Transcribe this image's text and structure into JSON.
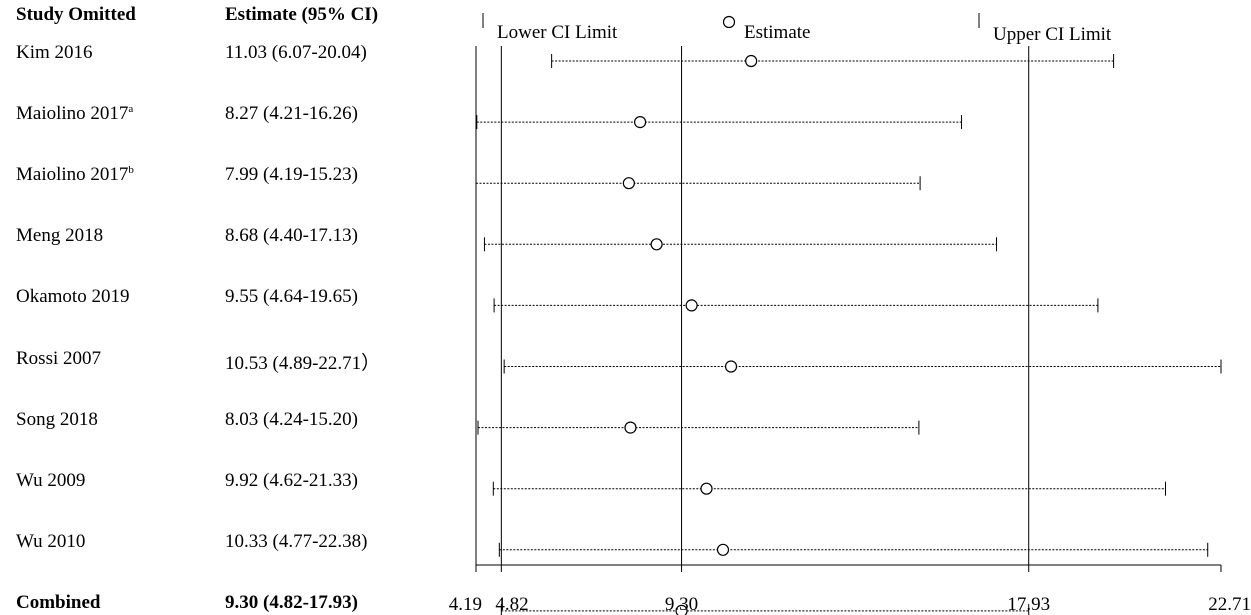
{
  "headers": {
    "study": "Study Omitted",
    "estimate": "Estimate (95% CI)"
  },
  "legend": {
    "lower": "Lower CI Limit",
    "estimate": "Estimate",
    "upper": "Upper CI Limit"
  },
  "chart_data": {
    "type": "scatter",
    "x_ticks": [
      "4.19",
      "4.82",
      "9.30",
      "17.93",
      "22.71"
    ],
    "xlim": [
      4.19,
      22.71
    ],
    "reference_lines": [
      4.19,
      4.82,
      9.3,
      17.93
    ],
    "rows": [
      {
        "name": "Kim 2016",
        "sup": "",
        "ci_text": "11.03 (6.07-20.04)",
        "est": 11.03,
        "lo": 6.07,
        "hi": 20.04,
        "bold": false
      },
      {
        "name": "Maiolino 2017",
        "sup": "a",
        "ci_text": "8.27 (4.21-16.26)",
        "est": 8.27,
        "lo": 4.21,
        "hi": 16.26,
        "bold": false
      },
      {
        "name": "Maiolino 2017",
        "sup": "b",
        "ci_text": "7.99 (4.19-15.23)",
        "est": 7.99,
        "lo": 4.19,
        "hi": 15.23,
        "bold": false
      },
      {
        "name": "Meng 2018",
        "sup": "",
        "ci_text": "8.68 (4.40-17.13)",
        "est": 8.68,
        "lo": 4.4,
        "hi": 17.13,
        "bold": false
      },
      {
        "name": "Okamoto 2019",
        "sup": "",
        "ci_text": "9.55 (4.64-19.65)",
        "est": 9.55,
        "lo": 4.64,
        "hi": 19.65,
        "bold": false
      },
      {
        "name": "Rossi 2007",
        "sup": "",
        "ci_text": "10.53 (4.89-22.71）",
        "est": 10.53,
        "lo": 4.89,
        "hi": 22.71,
        "bold": false
      },
      {
        "name": "Song 2018",
        "sup": "",
        "ci_text": "8.03 (4.24-15.20)",
        "est": 8.03,
        "lo": 4.24,
        "hi": 15.2,
        "bold": false
      },
      {
        "name": "Wu 2009",
        "sup": "",
        "ci_text": "9.92 (4.62-21.33)",
        "est": 9.92,
        "lo": 4.62,
        "hi": 21.33,
        "bold": false
      },
      {
        "name": "Wu 2010",
        "sup": "",
        "ci_text": "10.33 (4.77-22.38)",
        "est": 10.33,
        "lo": 4.77,
        "hi": 22.38,
        "bold": false
      },
      {
        "name": "Combined",
        "sup": "",
        "ci_text": "9.30 (4.82-17.93)",
        "est": 9.3,
        "lo": 4.82,
        "hi": 17.93,
        "bold": true
      }
    ]
  }
}
